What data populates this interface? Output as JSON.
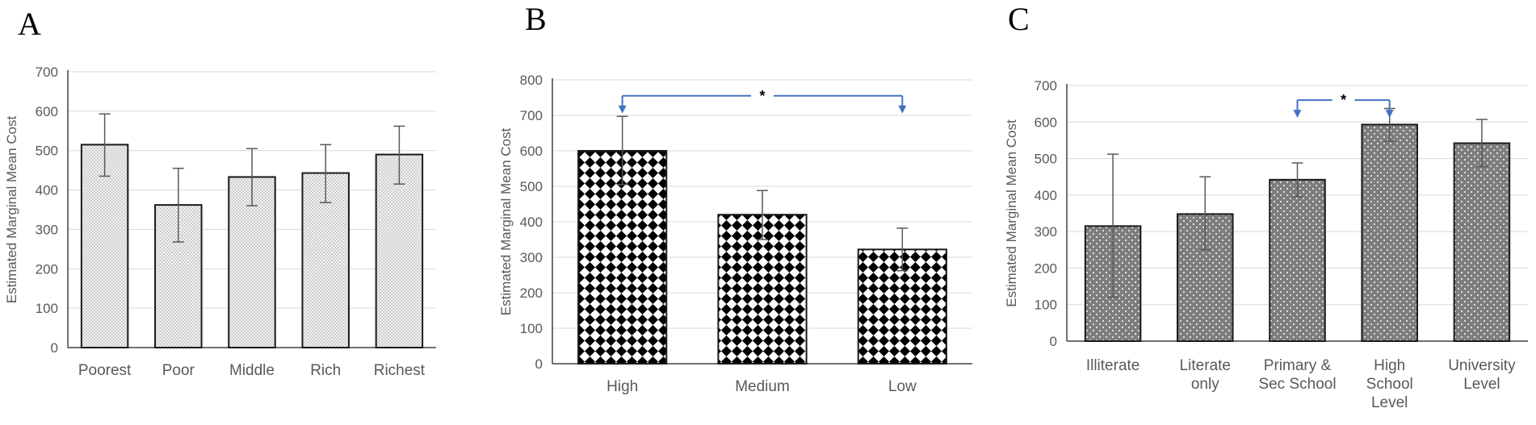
{
  "chart_data": [
    {
      "panel_label": "A",
      "type": "bar",
      "ylabel": "Estimated Marginal Mean Cost",
      "ylim": [
        0,
        700
      ],
      "yticks": [
        0,
        100,
        200,
        300,
        400,
        500,
        600,
        700
      ],
      "grid": true,
      "pattern": "light-dots",
      "categories": [
        [
          "Poorest"
        ],
        [
          "Poor"
        ],
        [
          "Middle"
        ],
        [
          "Rich"
        ],
        [
          "Richest"
        ]
      ],
      "values": [
        515,
        362,
        433,
        443,
        490
      ],
      "error_upper": [
        593,
        455,
        505,
        515,
        562
      ],
      "error_lower": [
        435,
        268,
        360,
        368,
        415
      ],
      "significance": []
    },
    {
      "panel_label": "B",
      "type": "bar",
      "ylabel": "Estimated Marginal Mean Cost",
      "ylim": [
        0,
        800
      ],
      "yticks": [
        0,
        100,
        200,
        300,
        400,
        500,
        600,
        700,
        800
      ],
      "grid": true,
      "pattern": "checker-diamond",
      "categories": [
        [
          "High"
        ],
        [
          "Medium"
        ],
        [
          "Low"
        ]
      ],
      "values": [
        600,
        420,
        322
      ],
      "error_upper": [
        697,
        488,
        382
      ],
      "error_lower": [
        505,
        350,
        262
      ],
      "significance": [
        {
          "from": 0,
          "to": 2,
          "y": 755,
          "label": "*"
        }
      ]
    },
    {
      "panel_label": "C",
      "type": "bar",
      "ylabel": "Estimated Marginal Mean Cost",
      "ylim": [
        0,
        700
      ],
      "yticks": [
        0,
        100,
        200,
        300,
        400,
        500,
        600,
        700
      ],
      "grid": true,
      "pattern": "dark-dots",
      "categories": [
        [
          "Illiterate"
        ],
        [
          "Literate",
          "only"
        ],
        [
          "Primary &",
          "Sec School"
        ],
        [
          "High",
          "School",
          "Level"
        ],
        [
          "University",
          "Level"
        ]
      ],
      "values": [
        315,
        348,
        442,
        593,
        542
      ],
      "error_upper": [
        512,
        450,
        488,
        637,
        607
      ],
      "error_lower": [
        120,
        250,
        395,
        548,
        478
      ],
      "significance": [
        {
          "from": 2,
          "to": 3,
          "y": 660,
          "label": "*"
        }
      ]
    }
  ]
}
